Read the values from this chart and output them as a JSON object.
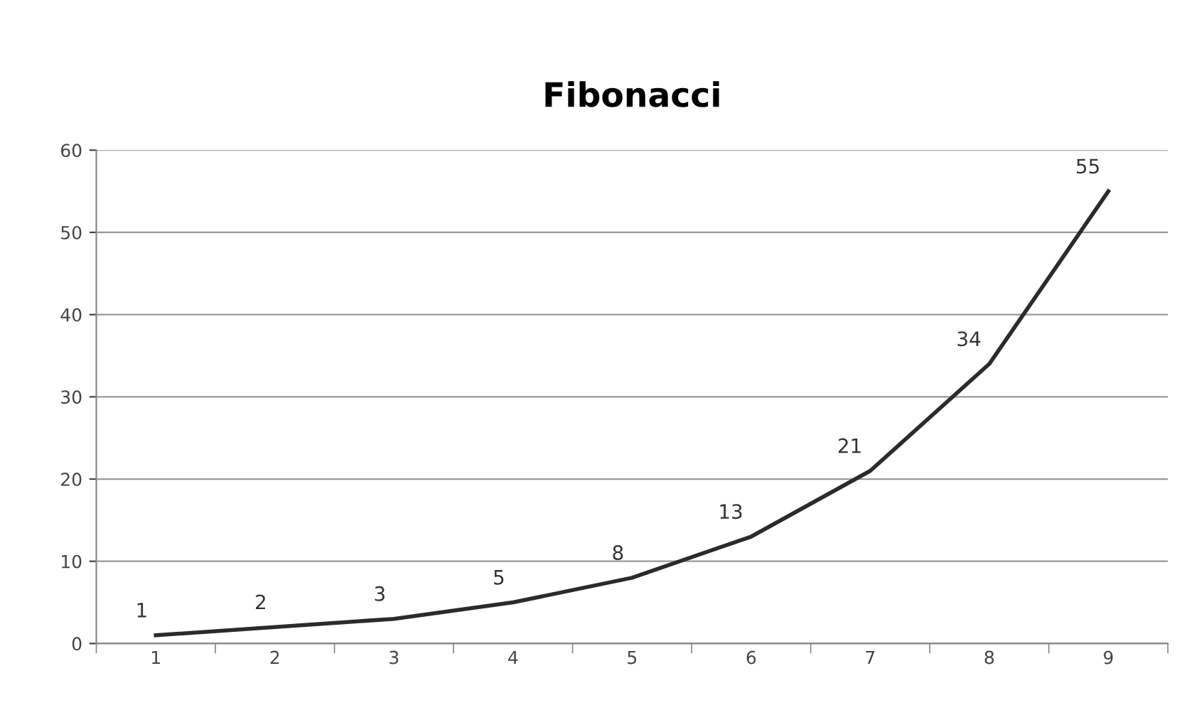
{
  "chart_data": {
    "type": "line",
    "title": "Fibonacci",
    "categories": [
      "1",
      "2",
      "3",
      "4",
      "5",
      "6",
      "7",
      "8",
      "9"
    ],
    "series": [
      {
        "color": "#2b2b2b",
        "values": [
          1,
          2,
          3,
          5,
          8,
          13,
          21,
          34,
          55
        ]
      }
    ],
    "ylim": [
      0,
      60
    ],
    "yticks": [
      0,
      10,
      20,
      30,
      40,
      50,
      60
    ],
    "grid": "y",
    "data_labels": true,
    "marker": "none",
    "line_style": "solid"
  }
}
